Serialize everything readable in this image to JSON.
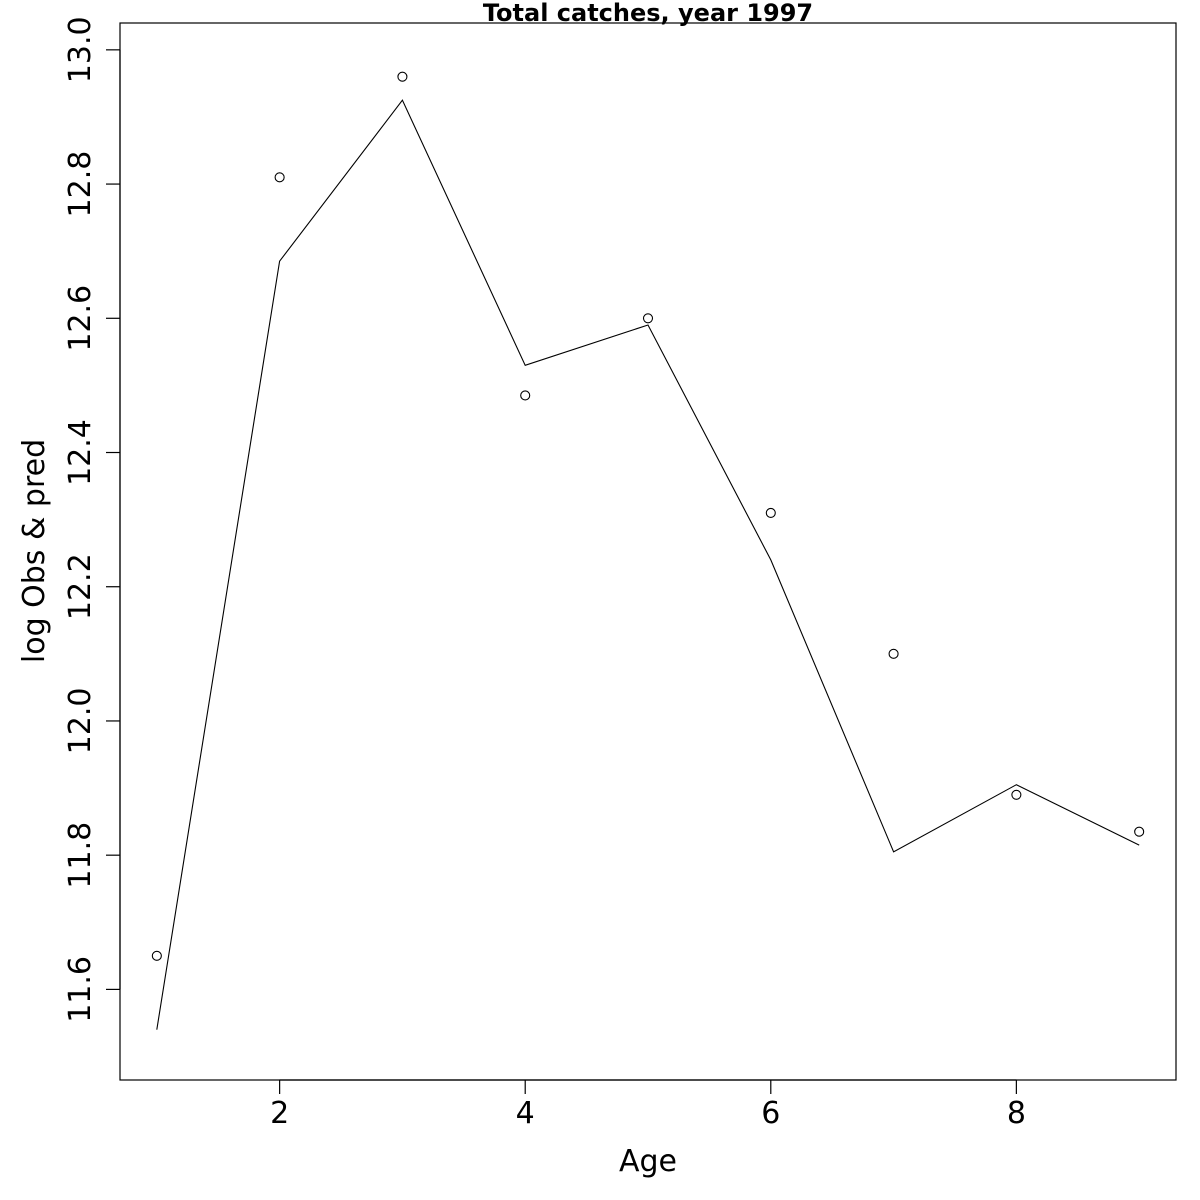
{
  "chart_data": {
    "type": "scatter",
    "title": "Total catches, year 1997",
    "xlabel": "Age",
    "ylabel": "log Obs & pred",
    "xlim": [
      0.7,
      9.3
    ],
    "ylim": [
      11.465,
      13.04
    ],
    "x_ticks": [
      "2",
      "4",
      "6",
      "8"
    ],
    "y_ticks": [
      "11.6",
      "11.8",
      "12.0",
      "12.2",
      "12.4",
      "12.6",
      "12.8",
      "13.0"
    ],
    "grid": false,
    "legend": "none",
    "line_color": "#000000",
    "point_color": "#000000",
    "series": [
      {
        "kind": "points",
        "x": [
          1,
          2,
          3,
          4,
          5,
          6,
          7,
          8,
          9
        ],
        "y": [
          11.65,
          12.81,
          12.96,
          12.485,
          12.6,
          12.31,
          12.1,
          11.89,
          11.835
        ]
      },
      {
        "kind": "line",
        "x": [
          1,
          2,
          3,
          4,
          5,
          6,
          7,
          8,
          9
        ],
        "y": [
          11.54,
          12.685,
          12.925,
          12.53,
          12.59,
          12.24,
          11.805,
          11.905,
          11.815
        ]
      }
    ]
  }
}
